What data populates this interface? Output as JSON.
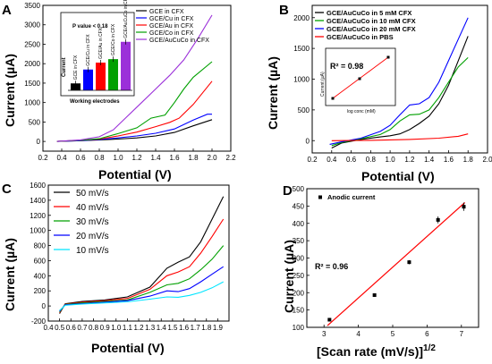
{
  "colors": {
    "black": "#000000",
    "blue": "#0000ff",
    "red": "#ff0000",
    "green": "#00a000",
    "purple": "#9b30d9",
    "cyan": "#00e5ff",
    "darkgreen": "#1a7a1a"
  },
  "chart_data": [
    {
      "panel": "A",
      "type": "line",
      "xlabel": "Potential (V)",
      "ylabel": "Current (µA)",
      "xlim": [
        0.2,
        2.2
      ],
      "ylim": [
        -250,
        3500
      ],
      "xticks": [
        "0.2",
        "0.4",
        "0.6",
        "0.8",
        "1.0",
        "1.2",
        "1.4",
        "1.6",
        "1.8",
        "2.0",
        "2.2"
      ],
      "yticks": [
        "0",
        "500",
        "1000",
        "1500",
        "2000",
        "2500",
        "3000",
        "3500"
      ],
      "legend": [
        "GCE in CFX",
        "GCE/Cu in CFX",
        "GCE/Au in CFX",
        "GCE/Co in CFX",
        "GCE/AuCuCo in CFX"
      ],
      "series": [
        {
          "name": "GCE in CFX",
          "color": "black",
          "points": [
            [
              0.35,
              0
            ],
            [
              0.6,
              20
            ],
            [
              0.8,
              40
            ],
            [
              1.0,
              60
            ],
            [
              1.2,
              90
            ],
            [
              1.4,
              140
            ],
            [
              1.6,
              230
            ],
            [
              1.8,
              400
            ],
            [
              2.0,
              560
            ]
          ]
        },
        {
          "name": "GCE/Cu in CFX",
          "color": "blue",
          "points": [
            [
              0.35,
              0
            ],
            [
              0.6,
              20
            ],
            [
              0.8,
              50
            ],
            [
              1.0,
              90
            ],
            [
              1.2,
              140
            ],
            [
              1.4,
              210
            ],
            [
              1.6,
              320
            ],
            [
              1.8,
              550
            ],
            [
              1.95,
              700
            ],
            [
              2.0,
              700
            ]
          ]
        },
        {
          "name": "GCE/Au in CFX",
          "color": "red",
          "points": [
            [
              0.35,
              0
            ],
            [
              0.6,
              30
            ],
            [
              0.8,
              60
            ],
            [
              1.0,
              140
            ],
            [
              1.2,
              240
            ],
            [
              1.4,
              380
            ],
            [
              1.55,
              490
            ],
            [
              1.65,
              600
            ],
            [
              1.8,
              950
            ],
            [
              2.0,
              1550
            ]
          ]
        },
        {
          "name": "GCE/Co in CFX",
          "color": "green",
          "points": [
            [
              0.35,
              0
            ],
            [
              0.6,
              30
            ],
            [
              0.8,
              70
            ],
            [
              1.0,
              200
            ],
            [
              1.2,
              350
            ],
            [
              1.35,
              600
            ],
            [
              1.5,
              680
            ],
            [
              1.6,
              1000
            ],
            [
              1.7,
              1350
            ],
            [
              1.8,
              1650
            ],
            [
              2.0,
              2050
            ]
          ]
        },
        {
          "name": "GCE/AuCuCo in CFX",
          "color": "purple",
          "points": [
            [
              0.35,
              0
            ],
            [
              0.6,
              40
            ],
            [
              0.8,
              120
            ],
            [
              0.95,
              300
            ],
            [
              1.1,
              650
            ],
            [
              1.25,
              1000
            ],
            [
              1.4,
              1350
            ],
            [
              1.55,
              1700
            ],
            [
              1.7,
              2100
            ],
            [
              1.85,
              2650
            ],
            [
              2.0,
              3250
            ]
          ]
        }
      ],
      "inset": {
        "ylabel": "Current",
        "xlabel": "Working electrodes",
        "annotation": "P value < 0.18",
        "categories": [
          "GCE in CFX",
          "GCE/Cu in CFX",
          "GCE/Au in CFX",
          "GCE/Co in CFX",
          "GCE/AuCuCo in CFX"
        ],
        "values": [
          1,
          3,
          4,
          4.5,
          7
        ],
        "colors": [
          "black",
          "blue",
          "red",
          "green",
          "purple"
        ]
      }
    },
    {
      "panel": "B",
      "type": "line",
      "xlabel": "Potential (V)",
      "ylabel": "Current (µA)",
      "xlim": [
        0.2,
        2.0
      ],
      "ylim": [
        -200,
        2200
      ],
      "xticks": [
        "0.2",
        "0.4",
        "0.6",
        "0.8",
        "1.0",
        "1.2",
        "1.4",
        "1.6",
        "1.8",
        "2.0"
      ],
      "yticks": [
        "0",
        "500",
        "1000",
        "1500",
        "2000"
      ],
      "legend": [
        "GCE/AuCuCo in 5 mM CFX",
        "GCE/AuCuCo in 10 mM CFX",
        "GCE/AuCuCo in 20 mM CFX",
        "GCE/AuCuCo in PBS"
      ],
      "series": [
        {
          "name": "GCE/AuCuCo in 5 mM CFX",
          "color": "black",
          "points": [
            [
              0.4,
              -120
            ],
            [
              0.5,
              -40
            ],
            [
              0.7,
              20
            ],
            [
              0.9,
              60
            ],
            [
              1.0,
              80
            ],
            [
              1.1,
              110
            ],
            [
              1.2,
              180
            ],
            [
              1.3,
              280
            ],
            [
              1.4,
              400
            ],
            [
              1.5,
              600
            ],
            [
              1.6,
              900
            ],
            [
              1.7,
              1300
            ],
            [
              1.8,
              1700
            ]
          ]
        },
        {
          "name": "GCE/AuCuCo in 10 mM CFX",
          "color": "green",
          "points": [
            [
              0.4,
              -80
            ],
            [
              0.5,
              -30
            ],
            [
              0.7,
              30
            ],
            [
              0.9,
              100
            ],
            [
              1.0,
              180
            ],
            [
              1.1,
              320
            ],
            [
              1.2,
              420
            ],
            [
              1.3,
              430
            ],
            [
              1.4,
              500
            ],
            [
              1.5,
              700
            ],
            [
              1.6,
              950
            ],
            [
              1.7,
              1200
            ],
            [
              1.8,
              1350
            ]
          ]
        },
        {
          "name": "GCE/AuCuCo in 20 mM CFX",
          "color": "blue",
          "points": [
            [
              0.38,
              -60
            ],
            [
              0.5,
              -20
            ],
            [
              0.7,
              40
            ],
            [
              0.9,
              150
            ],
            [
              1.0,
              250
            ],
            [
              1.1,
              420
            ],
            [
              1.2,
              580
            ],
            [
              1.3,
              600
            ],
            [
              1.4,
              700
            ],
            [
              1.5,
              950
            ],
            [
              1.6,
              1300
            ],
            [
              1.7,
              1650
            ],
            [
              1.8,
              2000
            ]
          ]
        },
        {
          "name": "GCE/AuCuCo in PBS",
          "color": "red",
          "points": [
            [
              0.4,
              0
            ],
            [
              0.8,
              5
            ],
            [
              1.2,
              20
            ],
            [
              1.5,
              40
            ],
            [
              1.7,
              70
            ],
            [
              1.8,
              110
            ]
          ]
        }
      ],
      "inset": {
        "annotation": "R² = 0.98",
        "xlabel": "log conc (mM)",
        "ylabel": "Current (µA)"
      }
    },
    {
      "panel": "C",
      "type": "line",
      "xlabel": "Potential (V)",
      "ylabel": "Current (µA)",
      "xlim": [
        0.4,
        2.0
      ],
      "ylim": [
        -200,
        1600
      ],
      "xticks": [
        "0.4",
        "0.5",
        "0.6",
        "0.7",
        "0.8",
        "0.9",
        "1.0",
        "1.1",
        "1.2",
        "1.3",
        "1.4",
        "1.5",
        "1.6",
        "1.7",
        "1.8",
        "1.9"
      ],
      "yticks": [
        "-200",
        "0",
        "200",
        "400",
        "600",
        "800",
        "1000",
        "1200",
        "1400",
        "1600"
      ],
      "legend": [
        "50 mV/s",
        "40 mV/s",
        "30 mV/s",
        "20 mV/s",
        "10 mV/s"
      ],
      "series": [
        {
          "name": "50 mV/s",
          "color": "black",
          "points": [
            [
              0.5,
              -100
            ],
            [
              0.55,
              30
            ],
            [
              0.7,
              60
            ],
            [
              0.9,
              80
            ],
            [
              1.1,
              120
            ],
            [
              1.3,
              250
            ],
            [
              1.45,
              500
            ],
            [
              1.55,
              580
            ],
            [
              1.65,
              650
            ],
            [
              1.75,
              850
            ],
            [
              1.85,
              1150
            ],
            [
              1.95,
              1450
            ]
          ]
        },
        {
          "name": "40 mV/s",
          "color": "red",
          "points": [
            [
              0.5,
              -90
            ],
            [
              0.55,
              25
            ],
            [
              0.7,
              50
            ],
            [
              0.9,
              70
            ],
            [
              1.1,
              100
            ],
            [
              1.3,
              220
            ],
            [
              1.45,
              400
            ],
            [
              1.55,
              450
            ],
            [
              1.65,
              520
            ],
            [
              1.75,
              700
            ],
            [
              1.85,
              920
            ],
            [
              1.95,
              1150
            ]
          ]
        },
        {
          "name": "30 mV/s",
          "color": "green",
          "points": [
            [
              0.5,
              -80
            ],
            [
              0.55,
              20
            ],
            [
              0.7,
              40
            ],
            [
              0.9,
              60
            ],
            [
              1.1,
              80
            ],
            [
              1.3,
              180
            ],
            [
              1.45,
              280
            ],
            [
              1.55,
              300
            ],
            [
              1.65,
              360
            ],
            [
              1.75,
              480
            ],
            [
              1.85,
              620
            ],
            [
              1.95,
              800
            ]
          ]
        },
        {
          "name": "20 mV/s",
          "color": "blue",
          "points": [
            [
              0.5,
              -70
            ],
            [
              0.55,
              15
            ],
            [
              0.7,
              30
            ],
            [
              0.9,
              50
            ],
            [
              1.1,
              70
            ],
            [
              1.3,
              130
            ],
            [
              1.45,
              200
            ],
            [
              1.55,
              190
            ],
            [
              1.65,
              230
            ],
            [
              1.75,
              320
            ],
            [
              1.85,
              420
            ],
            [
              1.95,
              520
            ]
          ]
        },
        {
          "name": "10 mV/s",
          "color": "cyan",
          "points": [
            [
              0.5,
              -60
            ],
            [
              0.55,
              10
            ],
            [
              0.7,
              25
            ],
            [
              0.9,
              40
            ],
            [
              1.1,
              55
            ],
            [
              1.3,
              90
            ],
            [
              1.45,
              120
            ],
            [
              1.55,
              115
            ],
            [
              1.65,
              140
            ],
            [
              1.75,
              180
            ],
            [
              1.85,
              240
            ],
            [
              1.95,
              320
            ]
          ]
        }
      ]
    },
    {
      "panel": "D",
      "type": "scatter",
      "xlabel": "[Scan rate (mV/s)]",
      "xlabel_sup": "1/2",
      "ylabel": "Current (µA)",
      "xlim": [
        2.5,
        7.5
      ],
      "ylim": [
        100,
        500
      ],
      "xticks": [
        "3",
        "4",
        "5",
        "6",
        "7"
      ],
      "yticks": [
        "100",
        "150",
        "200",
        "250",
        "300",
        "350",
        "400",
        "450",
        "500"
      ],
      "legend": [
        "Anodic current"
      ],
      "annotation": "R² = 0.96",
      "points": [
        [
          3.16,
          122
        ],
        [
          4.47,
          193
        ],
        [
          5.48,
          288
        ],
        [
          6.32,
          410
        ],
        [
          7.07,
          448
        ]
      ],
      "errors": [
        4,
        5,
        6,
        10,
        12
      ],
      "fit": [
        [
          3.1,
          105
        ],
        [
          7.1,
          460
        ]
      ]
    }
  ]
}
